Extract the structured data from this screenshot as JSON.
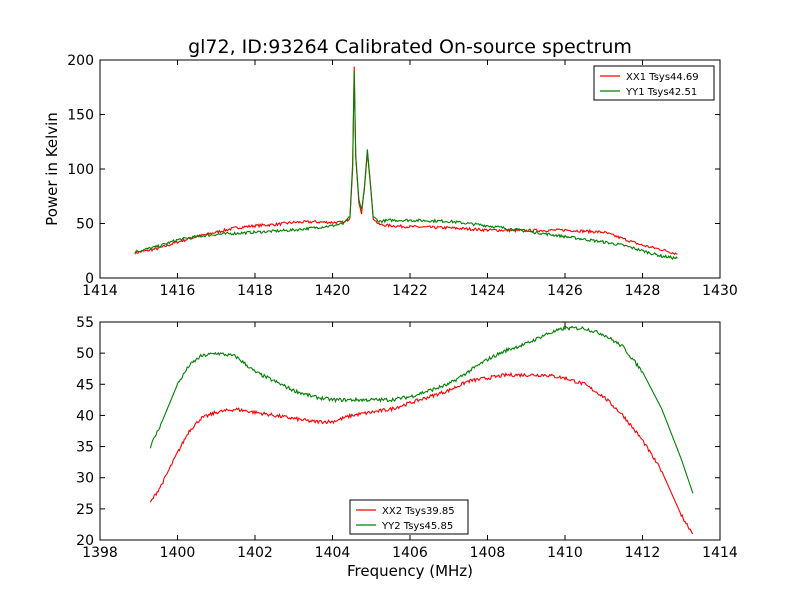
{
  "figure": {
    "title": "gl72, ID:93264 Calibrated On-source spectrum"
  },
  "chart_data": [
    {
      "type": "line",
      "title": "gl72, ID:93264 Calibrated On-source spectrum",
      "xlabel": "",
      "ylabel": "Power in Kelvin",
      "xlim": [
        1414,
        1430
      ],
      "ylim": [
        0,
        200
      ],
      "xticks": [
        1414,
        1416,
        1418,
        1420,
        1422,
        1424,
        1426,
        1428,
        1430
      ],
      "yticks": [
        0,
        50,
        100,
        150,
        200
      ],
      "grid": false,
      "legend": {
        "placement": "top-right"
      },
      "series": [
        {
          "name": "XX1 Tsys44.69",
          "color": "#ff0000",
          "points": [
            [
              1414.9,
              23
            ],
            [
              1415.5,
              27
            ],
            [
              1416,
              33
            ],
            [
              1416.5,
              38
            ],
            [
              1417,
              42
            ],
            [
              1417.5,
              46
            ],
            [
              1418,
              48
            ],
            [
              1418.5,
              49
            ],
            [
              1419,
              51
            ],
            [
              1419.5,
              51.5
            ],
            [
              1420,
              51
            ],
            [
              1420.3,
              51
            ],
            [
              1420.45,
              55
            ],
            [
              1420.52,
              100
            ],
            [
              1420.56,
              194
            ],
            [
              1420.6,
              110
            ],
            [
              1420.68,
              70
            ],
            [
              1420.75,
              60
            ],
            [
              1420.82,
              80
            ],
            [
              1420.9,
              115
            ],
            [
              1420.98,
              85
            ],
            [
              1421.05,
              55
            ],
            [
              1421.2,
              49
            ],
            [
              1421.5,
              48
            ],
            [
              1422,
              47
            ],
            [
              1423,
              46
            ],
            [
              1424,
              44
            ],
            [
              1425,
              43.5
            ],
            [
              1426,
              44
            ],
            [
              1427,
              42
            ],
            [
              1427.5,
              36
            ],
            [
              1428,
              30
            ],
            [
              1428.5,
              26
            ],
            [
              1428.9,
              22
            ]
          ]
        },
        {
          "name": "YY1 Tsys42.51",
          "color": "#008000",
          "points": [
            [
              1414.9,
              24
            ],
            [
              1415.5,
              29
            ],
            [
              1416,
              35
            ],
            [
              1416.5,
              38
            ],
            [
              1417,
              40
            ],
            [
              1417.5,
              41
            ],
            [
              1418,
              42
            ],
            [
              1418.5,
              43
            ],
            [
              1419,
              44
            ],
            [
              1419.5,
              46
            ],
            [
              1420,
              48
            ],
            [
              1420.3,
              50
            ],
            [
              1420.45,
              56
            ],
            [
              1420.52,
              105
            ],
            [
              1420.56,
              190
            ],
            [
              1420.6,
              112
            ],
            [
              1420.68,
              72
            ],
            [
              1420.75,
              62
            ],
            [
              1420.82,
              82
            ],
            [
              1420.9,
              118
            ],
            [
              1420.98,
              86
            ],
            [
              1421.05,
              56
            ],
            [
              1421.2,
              52
            ],
            [
              1421.5,
              53
            ],
            [
              1422,
              53
            ],
            [
              1423,
              52
            ],
            [
              1424,
              48
            ],
            [
              1425,
              43
            ],
            [
              1426,
              38
            ],
            [
              1427,
              33
            ],
            [
              1427.5,
              30
            ],
            [
              1428,
              25
            ],
            [
              1428.5,
              20
            ],
            [
              1428.9,
              18
            ]
          ]
        }
      ]
    },
    {
      "type": "line",
      "title": "",
      "xlabel": "Frequency (MHz)",
      "ylabel": "",
      "xlim": [
        1398,
        1414
      ],
      "ylim": [
        20,
        55
      ],
      "xticks": [
        1398,
        1400,
        1402,
        1404,
        1406,
        1408,
        1410,
        1412,
        1414
      ],
      "yticks": [
        20,
        25,
        30,
        35,
        40,
        45,
        50,
        55
      ],
      "grid": false,
      "legend": {
        "placement": "bottom-center"
      },
      "series": [
        {
          "name": "XX2 Tsys39.85",
          "color": "#ff0000",
          "points": [
            [
              1399.3,
              26
            ],
            [
              1399.6,
              29
            ],
            [
              1400,
              34
            ],
            [
              1400.3,
              37.5
            ],
            [
              1400.6,
              39.5
            ],
            [
              1401,
              40.5
            ],
            [
              1401.5,
              41
            ],
            [
              1402,
              40.5
            ],
            [
              1402.5,
              40
            ],
            [
              1403,
              39.5
            ],
            [
              1403.5,
              39
            ],
            [
              1404,
              39
            ],
            [
              1404.5,
              40
            ],
            [
              1405,
              40.5
            ],
            [
              1405.5,
              41
            ],
            [
              1406,
              42
            ],
            [
              1406.5,
              43
            ],
            [
              1407,
              44
            ],
            [
              1407.5,
              45.5
            ],
            [
              1408,
              46
            ],
            [
              1408.5,
              46.5
            ],
            [
              1409,
              46.5
            ],
            [
              1409.5,
              46.5
            ],
            [
              1410,
              46
            ],
            [
              1410.5,
              45
            ],
            [
              1411,
              43
            ],
            [
              1411.5,
              40
            ],
            [
              1412,
              36
            ],
            [
              1412.5,
              31
            ],
            [
              1413,
              24
            ],
            [
              1413.3,
              21
            ]
          ]
        },
        {
          "name": "YY2 Tsys45.85",
          "color": "#008000",
          "points": [
            [
              1399.3,
              35
            ],
            [
              1399.6,
              39
            ],
            [
              1400,
              45
            ],
            [
              1400.3,
              48
            ],
            [
              1400.6,
              49.5
            ],
            [
              1401,
              50
            ],
            [
              1401.5,
              49.5
            ],
            [
              1402,
              47
            ],
            [
              1402.5,
              45.5
            ],
            [
              1403,
              44
            ],
            [
              1403.5,
              43
            ],
            [
              1404,
              42.5
            ],
            [
              1404.5,
              42.5
            ],
            [
              1405,
              42.5
            ],
            [
              1405.5,
              42.5
            ],
            [
              1406,
              43
            ],
            [
              1406.5,
              44
            ],
            [
              1407,
              45
            ],
            [
              1407.5,
              47
            ],
            [
              1408,
              49
            ],
            [
              1408.5,
              50.5
            ],
            [
              1409,
              51.5
            ],
            [
              1409.5,
              53
            ],
            [
              1410,
              54
            ],
            [
              1410.5,
              54
            ],
            [
              1411,
              53
            ],
            [
              1411.5,
              51
            ],
            [
              1412,
              47
            ],
            [
              1412.5,
              41
            ],
            [
              1413,
              33
            ],
            [
              1413.3,
              27.5
            ]
          ]
        }
      ]
    }
  ]
}
